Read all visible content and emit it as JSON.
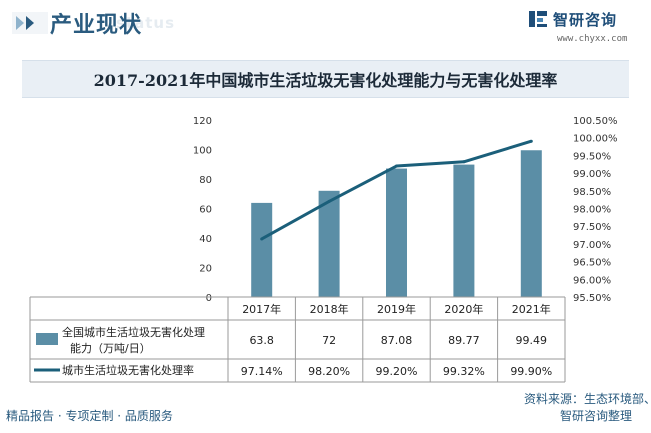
{
  "header": {
    "section_title": "产业现状",
    "ghost_text": "status",
    "brand_name": "智研咨询",
    "brand_url": "www.chyxx.com"
  },
  "footer": {
    "left": "精品报告 · 专项定制 · 品质服务",
    "source_line1": "资料来源：生态环境部、",
    "source_line2": "智研咨询整理"
  },
  "colors": {
    "bar": "#5b8ea6",
    "line": "#1b5f7a",
    "accent": "#2a5b7f"
  },
  "chart_data": {
    "type": "bar",
    "title": "2017-2021年中国城市生活垃圾无害化处理能力与无害化处理率",
    "categories": [
      "2017年",
      "2018年",
      "2019年",
      "2020年",
      "2021年"
    ],
    "series": [
      {
        "name": "全国城市生活垃圾无害化处理能力（万吨/日）",
        "name_line1": "全国城市生活垃圾无害化处理",
        "name_line2": "能力（万吨/日）",
        "type": "bar",
        "axis": "left",
        "values": [
          63.8,
          72,
          87.08,
          89.77,
          99.49
        ],
        "labels": [
          "63.8",
          "72",
          "87.08",
          "89.77",
          "99.49"
        ]
      },
      {
        "name": "城市生活垃圾无害化处理率",
        "type": "line",
        "axis": "right",
        "values": [
          97.14,
          98.2,
          99.2,
          99.32,
          99.9
        ],
        "labels": [
          "97.14%",
          "98.20%",
          "99.20%",
          "99.32%",
          "99.90%"
        ]
      }
    ],
    "y_left": {
      "range": [
        0,
        120
      ],
      "ticks": [
        "0",
        "20",
        "40",
        "60",
        "80",
        "100",
        "120"
      ]
    },
    "y_right": {
      "range": [
        95.5,
        100.5
      ],
      "ticks": [
        "95.50%",
        "96.00%",
        "96.50%",
        "97.00%",
        "97.50%",
        "98.00%",
        "98.50%",
        "99.00%",
        "99.50%",
        "100.00%",
        "100.50%"
      ]
    },
    "grid": false,
    "legend": "data-table"
  }
}
